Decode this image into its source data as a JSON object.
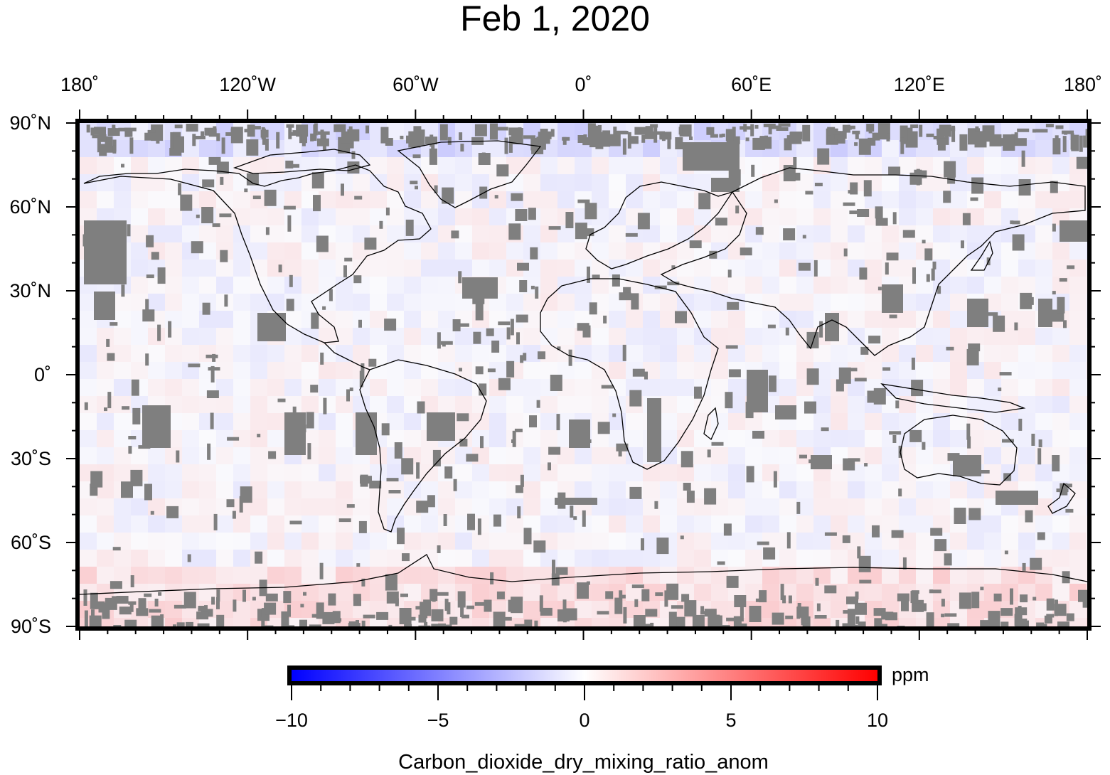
{
  "title": "Feb 1, 2020",
  "map": {
    "projection": "equirectangular",
    "lon_range": [
      -180,
      180
    ],
    "lat_range": [
      -90,
      90
    ],
    "lon_labels": [
      "180˚",
      "120˚W",
      "60˚W",
      "0˚",
      "60˚E",
      "120˚E",
      "180˚"
    ],
    "lon_values": [
      -180,
      -120,
      -60,
      0,
      60,
      120,
      180
    ],
    "lat_labels": [
      "90˚N",
      "60˚N",
      "30˚N",
      "0˚",
      "30˚S",
      "60˚S",
      "90˚S"
    ],
    "lat_values": [
      90,
      60,
      30,
      0,
      -30,
      -60,
      -90
    ],
    "missing_data_color": "#7f7f7f",
    "coastline_color": "#000000"
  },
  "colorbar": {
    "cmap": [
      "#0000ff",
      "#ffffff",
      "#ff0000"
    ],
    "range": [
      -10,
      10
    ],
    "tick_labels": [
      "−10",
      "−5",
      "0",
      "5",
      "10"
    ],
    "tick_values": [
      -10,
      -5,
      0,
      5,
      10
    ],
    "unit": "ppm",
    "title": "Carbon_dioxide_dry_mixing_ratio_anom"
  }
}
